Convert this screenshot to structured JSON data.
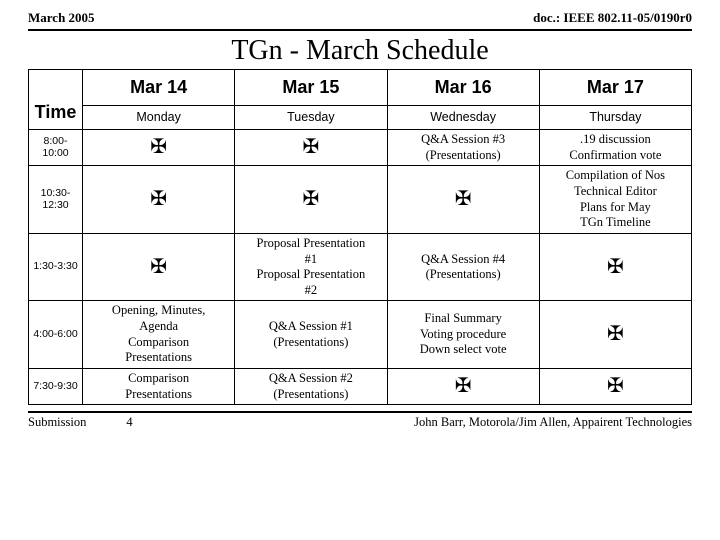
{
  "header": {
    "left": "March 2005",
    "right": "doc.: IEEE 802.11-05/0190r0"
  },
  "title": "TGn - March Schedule",
  "columns": {
    "time_header": "Time",
    "dates": [
      "Mar 14",
      "Mar 15",
      "Mar 16",
      "Mar 17"
    ],
    "days": [
      "Monday",
      "Tuesday",
      "Wednesday",
      "Thursday"
    ]
  },
  "cross_symbol": "✠",
  "rows": [
    {
      "time": "8:00-10:00",
      "cells": [
        {
          "cross": true
        },
        {
          "cross": true
        },
        {
          "lines": [
            "Q&A Session #3",
            "(Presentations)"
          ]
        },
        {
          "lines": [
            ".19 discussion",
            "Confirmation vote"
          ]
        }
      ]
    },
    {
      "time": "10:30-12:30",
      "cells": [
        {
          "cross": true
        },
        {
          "cross": true
        },
        {
          "cross": true
        },
        {
          "lines": [
            "Compilation of Nos",
            "Technical Editor",
            "Plans for May",
            "TGn Timeline"
          ]
        }
      ]
    },
    {
      "time": "1:30-3:30",
      "cells": [
        {
          "cross": true
        },
        {
          "lines": [
            "Proposal Presentation",
            "#1",
            "Proposal Presentation",
            "#2"
          ]
        },
        {
          "lines": [
            "Q&A Session #4",
            "(Presentations)"
          ]
        },
        {
          "cross": true
        }
      ]
    },
    {
      "time": "4:00-6:00",
      "cells": [
        {
          "lines": [
            "Opening, Minutes,",
            "Agenda",
            "Comparison",
            "Presentations"
          ]
        },
        {
          "lines": [
            "Q&A Session #1",
            "(Presentations)"
          ]
        },
        {
          "lines": [
            "Final Summary",
            "Voting procedure",
            "Down select vote"
          ]
        },
        {
          "cross": true
        }
      ]
    },
    {
      "time": "7:30-9:30",
      "cells": [
        {
          "lines": [
            "Comparison",
            "Presentations"
          ]
        },
        {
          "lines": [
            "Q&A Session #2",
            "(Presentations)"
          ]
        },
        {
          "cross": true
        },
        {
          "cross": true
        }
      ]
    }
  ],
  "footer": {
    "left": "Submission",
    "page": "4",
    "right": "John Barr, Motorola/Jim Allen, Appairent Technologies"
  }
}
